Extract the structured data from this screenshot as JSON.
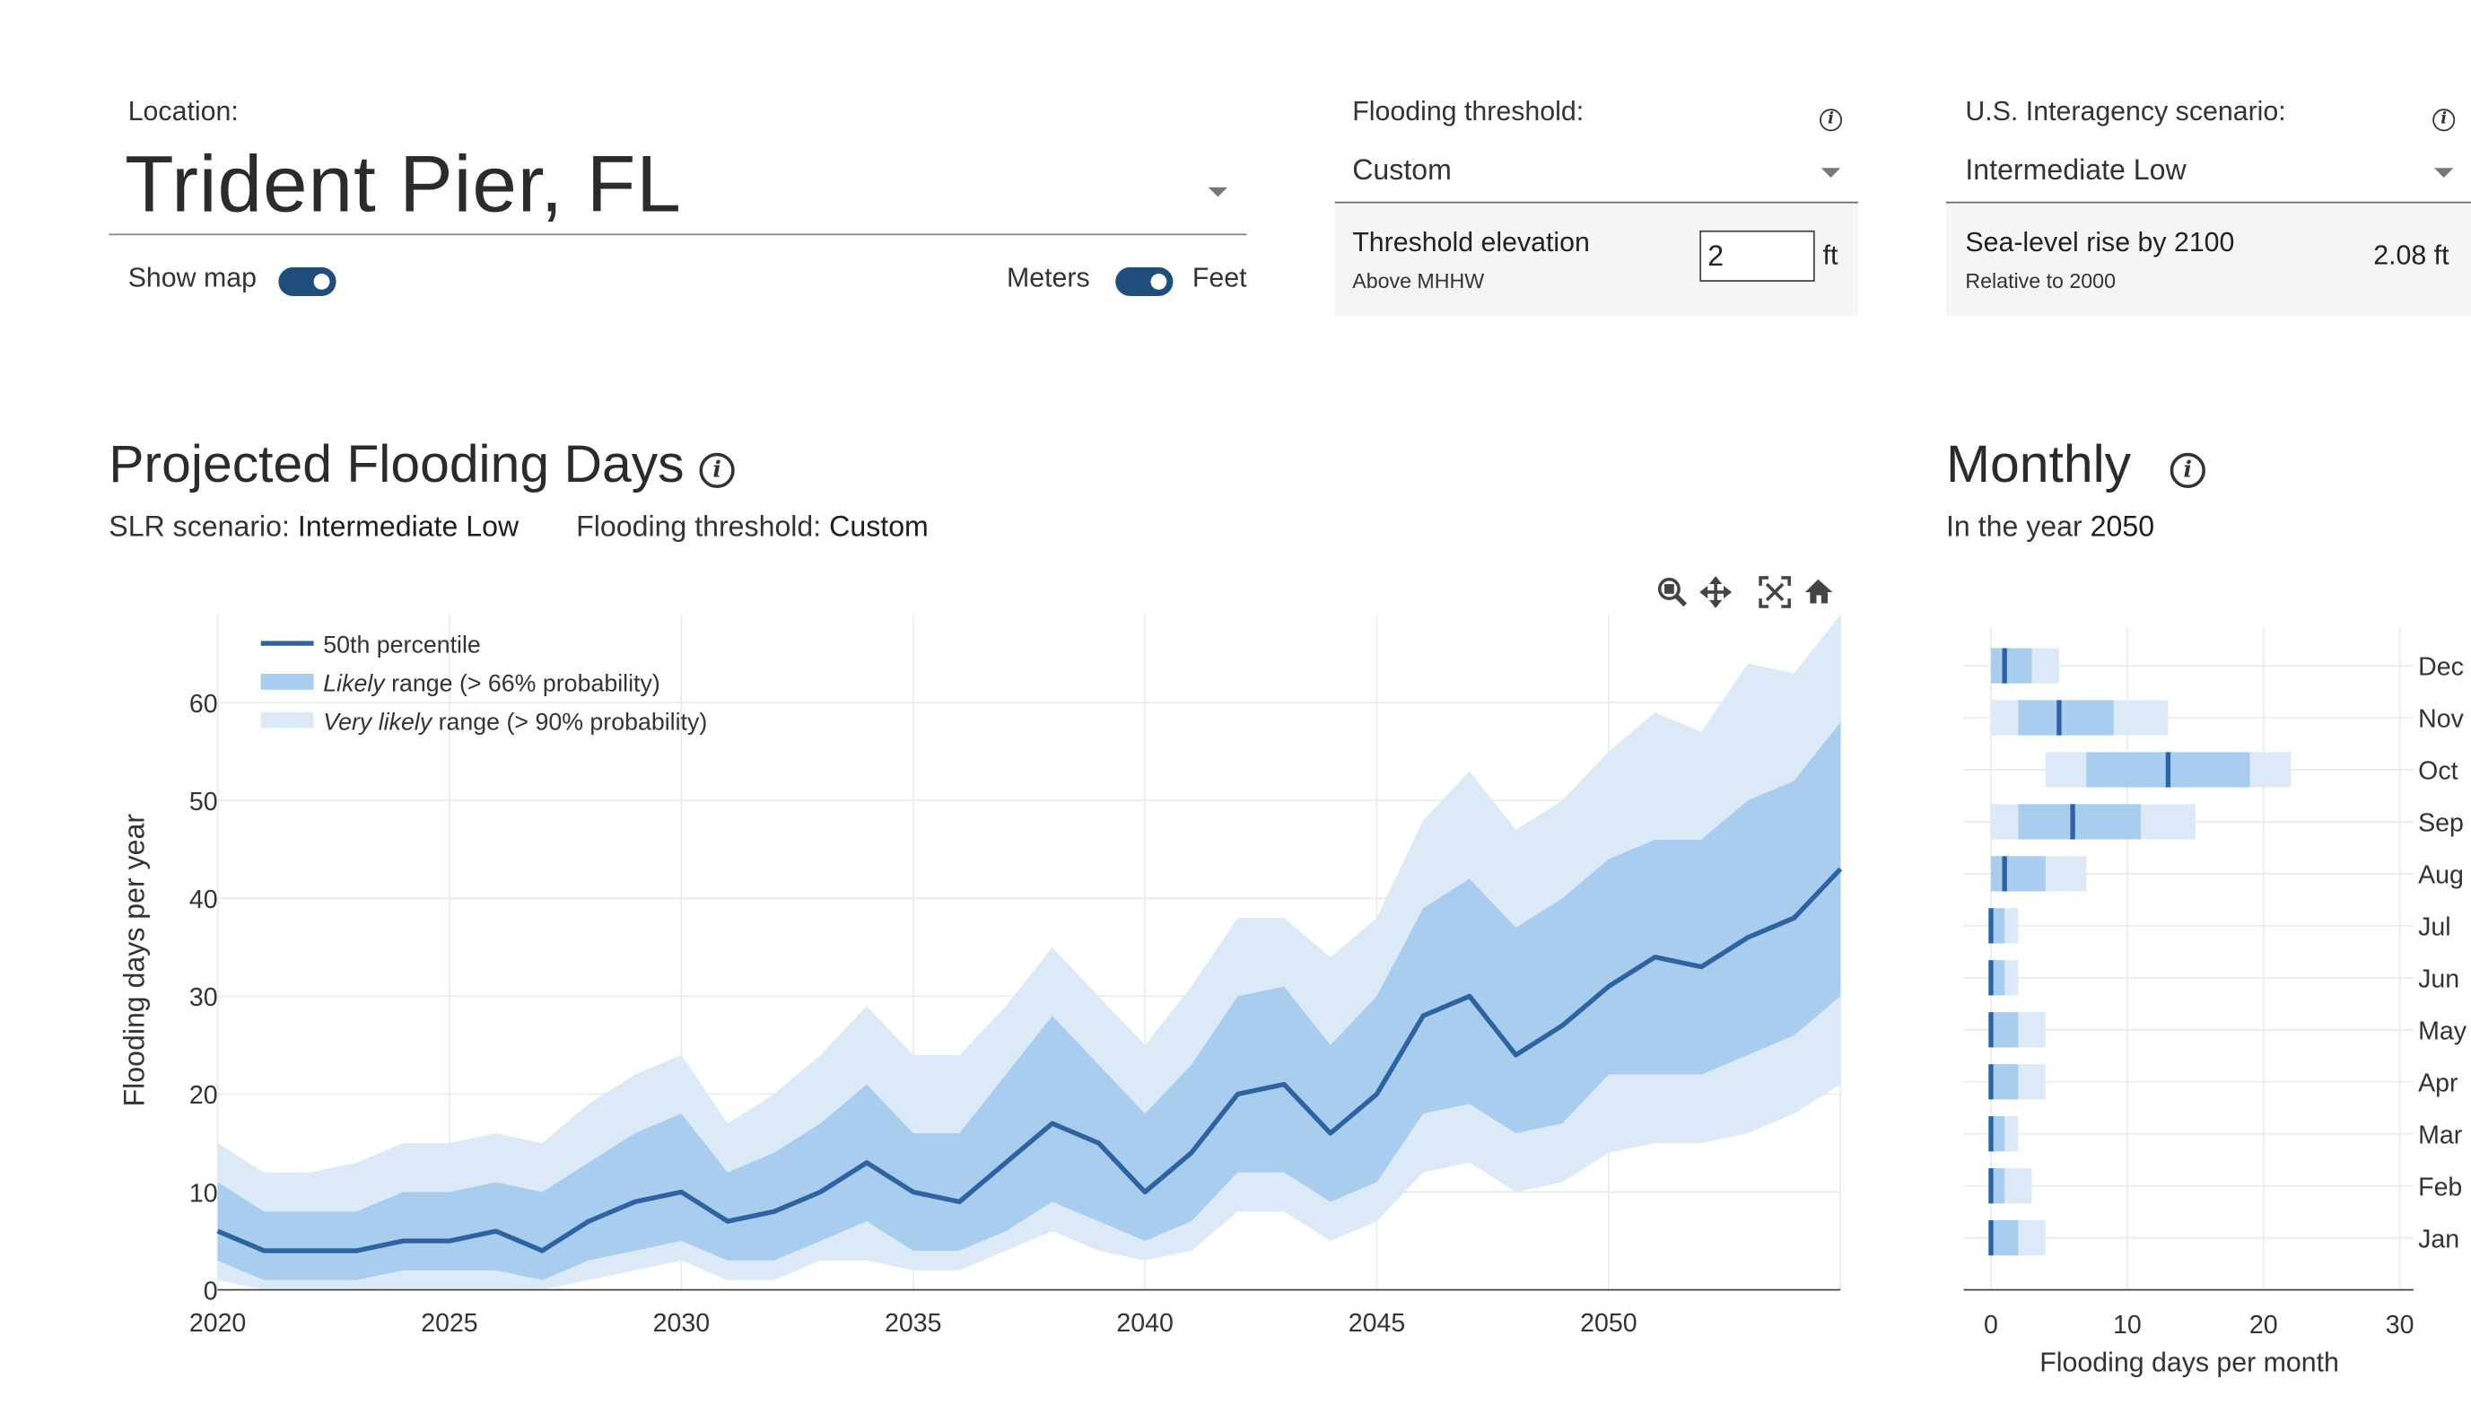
{
  "location": {
    "label": "Location:",
    "value": "Trident Pier, FL"
  },
  "toggles": {
    "show_map": "Show map",
    "meters": "Meters",
    "feet": "Feet"
  },
  "threshold": {
    "label": "Flooding threshold:",
    "selected": "Custom",
    "elevation_title": "Threshold elevation",
    "elevation_sub": "Above MHHW",
    "input_value": "2",
    "unit": "ft"
  },
  "scenario": {
    "label": "U.S. Interagency scenario:",
    "selected": "Intermediate Low",
    "rise_title": "Sea-level rise by 2100",
    "rise_sub": "Relative to 2000",
    "rise_value": "2.08 ft"
  },
  "projected": {
    "title": "Projected Flooding Days",
    "slr_label": "SLR scenario:",
    "slr_value": "Intermediate Low",
    "thr_label": "Flooding threshold:",
    "thr_value": "Custom"
  },
  "monthly": {
    "title": "Monthly",
    "year_label": "In the year",
    "year_value": "2050"
  },
  "colors": {
    "median": "#2e63a3",
    "likely": "#a9cdee",
    "very_likely": "#dce9f7",
    "toggle": "#1f4e7a"
  },
  "icons": [
    "info-icon",
    "zoom-icon",
    "pan-icon",
    "autoscale-icon",
    "home-icon",
    "chevron-down-icon"
  ],
  "chart_data": [
    {
      "type": "area",
      "title": "Projected Flooding Days",
      "xlabel": "",
      "ylabel": "Flooding days per year",
      "xlim": [
        2020,
        2055
      ],
      "ylim": [
        0,
        69
      ],
      "x_ticks": [
        2020,
        2025,
        2030,
        2035,
        2040,
        2045,
        2050
      ],
      "y_ticks": [
        0,
        10,
        20,
        30,
        40,
        50,
        60
      ],
      "legend": [
        "50th percentile",
        "Likely range (> 66% probability)",
        "Very likely range (> 90% probability)"
      ],
      "legend_emph": [
        "Likely",
        "Very likely"
      ],
      "legend_rest": [
        " range (> 66% probability)",
        " range (> 90% probability)"
      ],
      "legend_position": "top-left",
      "x": [
        2020,
        2021,
        2022,
        2023,
        2024,
        2025,
        2026,
        2027,
        2028,
        2029,
        2030,
        2031,
        2032,
        2033,
        2034,
        2035,
        2036,
        2037,
        2038,
        2039,
        2040,
        2041,
        2042,
        2043,
        2044,
        2045,
        2046,
        2047,
        2048,
        2049,
        2050,
        2051,
        2052,
        2053,
        2054,
        2055
      ],
      "series": [
        {
          "name": "Very likely upper",
          "values": [
            15,
            12,
            12,
            13,
            15,
            15,
            16,
            15,
            19,
            22,
            24,
            17,
            20,
            24,
            29,
            24,
            24,
            29,
            35,
            30,
            25,
            31,
            38,
            38,
            34,
            38,
            48,
            53,
            47,
            50,
            55,
            59,
            57,
            64,
            63,
            69
          ]
        },
        {
          "name": "Likely upper",
          "values": [
            11,
            8,
            8,
            8,
            10,
            10,
            11,
            10,
            13,
            16,
            18,
            12,
            14,
            17,
            21,
            16,
            16,
            22,
            28,
            23,
            18,
            23,
            30,
            31,
            25,
            30,
            39,
            42,
            37,
            40,
            44,
            46,
            46,
            50,
            52,
            58
          ]
        },
        {
          "name": "50th percentile",
          "values": [
            6,
            4,
            4,
            4,
            5,
            5,
            6,
            4,
            7,
            9,
            10,
            7,
            8,
            10,
            13,
            10,
            9,
            13,
            17,
            15,
            10,
            14,
            20,
            21,
            16,
            20,
            28,
            30,
            24,
            27,
            31,
            34,
            33,
            36,
            38,
            43
          ]
        },
        {
          "name": "Likely lower",
          "values": [
            3,
            1,
            1,
            1,
            2,
            2,
            2,
            1,
            3,
            4,
            5,
            3,
            3,
            5,
            7,
            4,
            4,
            6,
            9,
            7,
            5,
            7,
            12,
            12,
            9,
            11,
            18,
            19,
            16,
            17,
            22,
            22,
            22,
            24,
            26,
            30
          ]
        },
        {
          "name": "Very likely lower",
          "values": [
            1,
            0,
            0,
            0,
            0,
            0,
            0,
            0,
            1,
            2,
            3,
            1,
            1,
            3,
            3,
            2,
            2,
            4,
            6,
            4,
            3,
            4,
            8,
            8,
            5,
            7,
            12,
            13,
            10,
            11,
            14,
            15,
            15,
            16,
            18,
            21
          ]
        }
      ]
    },
    {
      "type": "bar",
      "title": "Monthly",
      "xlabel": "Flooding days per month",
      "xlim": [
        -2,
        31
      ],
      "x_ticks": [
        0,
        10,
        20,
        30
      ],
      "categories": [
        "Dec",
        "Nov",
        "Oct",
        "Sep",
        "Aug",
        "Jul",
        "Jun",
        "May",
        "Apr",
        "Mar",
        "Feb",
        "Jan"
      ],
      "very_likely": [
        [
          0,
          5
        ],
        [
          0,
          13
        ],
        [
          4,
          22
        ],
        [
          0,
          15
        ],
        [
          0,
          7
        ],
        [
          0,
          2
        ],
        [
          0,
          2
        ],
        [
          0,
          4
        ],
        [
          0,
          4
        ],
        [
          0,
          2
        ],
        [
          0,
          3
        ],
        [
          0,
          4
        ]
      ],
      "likely": [
        [
          0,
          3
        ],
        [
          2,
          9
        ],
        [
          7,
          19
        ],
        [
          2,
          11
        ],
        [
          0,
          4
        ],
        [
          0,
          1
        ],
        [
          0,
          1
        ],
        [
          0,
          2
        ],
        [
          0,
          2
        ],
        [
          0,
          1
        ],
        [
          0,
          1
        ],
        [
          0,
          2
        ]
      ],
      "median": [
        1,
        5,
        13,
        6,
        1,
        0,
        0,
        0,
        0,
        0,
        0,
        0
      ]
    }
  ]
}
